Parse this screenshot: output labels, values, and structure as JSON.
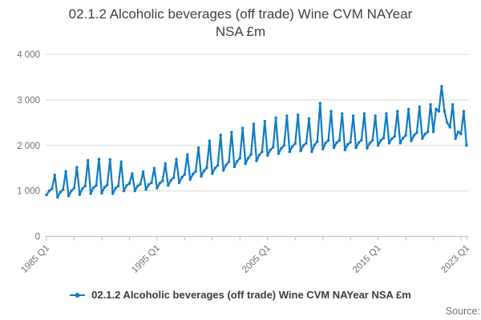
{
  "title": {
    "line1": "02.1.2 Alcoholic beverages (off trade) Wine CVM NAYear",
    "line2": "NSA £m"
  },
  "legend": {
    "items": [
      {
        "label": "02.1.2 Alcoholic beverages (off trade) Wine CVM NAYear NSA £m",
        "color": "#0e7cc4",
        "marker": "line-dot"
      }
    ]
  },
  "source": {
    "label": "Source:"
  },
  "colors": {
    "line": "#0e7cc4",
    "grid": "#d9d9d9",
    "axis": "#b9c7da",
    "tick_label": "#707070",
    "title_text": "#3f3f3f",
    "legend_text": "#3b3b3b",
    "source_text": "#6f6f6f",
    "background": "#ffffff"
  },
  "chart_data": {
    "type": "line",
    "title": "02.1.2 Alcoholic beverages (off trade) Wine CVM NAYear NSA £m",
    "x_unit": "quarter",
    "x_start": "1985 Q1",
    "x_end": "2023 Q1",
    "x_tick_labels": [
      {
        "label": "1985 Q1",
        "quarter_index": 0
      },
      {
        "label": "1995 Q1",
        "quarter_index": 40
      },
      {
        "label": "2005 Q1",
        "quarter_index": 80
      },
      {
        "label": "2015 Q1",
        "quarter_index": 120
      },
      {
        "label": "2023 Q1",
        "quarter_index": 152
      }
    ],
    "x_minor_tick_every_quarters": 10,
    "ylim": [
      0,
      4000
    ],
    "y_ticks": [
      {
        "value": 0,
        "label": "0"
      },
      {
        "value": 1000,
        "label": "1 000"
      },
      {
        "value": 2000,
        "label": "2 000"
      },
      {
        "value": 3000,
        "label": "3 000"
      },
      {
        "value": 4000,
        "label": "4 000"
      }
    ],
    "grid": "horizontal",
    "legend_position": "bottom",
    "series": [
      {
        "name": "02.1.2 Alcoholic beverages (off trade) Wine CVM NAYear NSA £m",
        "color": "#0e7cc4",
        "start": "1985 Q1",
        "frequency": "quarterly",
        "values": [
          910,
          1000,
          1050,
          1350,
          860,
          970,
          1030,
          1430,
          890,
          1000,
          1060,
          1520,
          920,
          1050,
          1110,
          1670,
          940,
          1070,
          1120,
          1700,
          950,
          1080,
          1130,
          1690,
          940,
          1060,
          1110,
          1640,
          1000,
          1120,
          1160,
          1380,
          1000,
          1110,
          1150,
          1420,
          1030,
          1140,
          1180,
          1500,
          1060,
          1170,
          1220,
          1600,
          1120,
          1230,
          1290,
          1700,
          1180,
          1300,
          1360,
          1800,
          1250,
          1370,
          1430,
          1950,
          1320,
          1440,
          1510,
          2100,
          1380,
          1500,
          1560,
          2230,
          1450,
          1570,
          1640,
          2290,
          1530,
          1650,
          1720,
          2380,
          1600,
          1720,
          1800,
          2470,
          1660,
          1790,
          1860,
          2530,
          1780,
          1900,
          1960,
          2610,
          1820,
          1940,
          2000,
          2650,
          1860,
          1980,
          2040,
          2670,
          1880,
          2000,
          2050,
          2590,
          1860,
          2010,
          2080,
          2930,
          1920,
          2050,
          2110,
          2750,
          1950,
          2060,
          2110,
          2700,
          1900,
          2020,
          2070,
          2650,
          1950,
          2060,
          2120,
          2700,
          1940,
          2050,
          2110,
          2650,
          2000,
          2110,
          2160,
          2700,
          2050,
          2150,
          2200,
          2750,
          2050,
          2160,
          2220,
          2800,
          2100,
          2220,
          2280,
          2850,
          2150,
          2250,
          2300,
          2900,
          2300,
          2800,
          2750,
          3300,
          2750,
          2500,
          2400,
          2900,
          2150,
          2300,
          2250,
          2750,
          2000
        ]
      }
    ]
  }
}
